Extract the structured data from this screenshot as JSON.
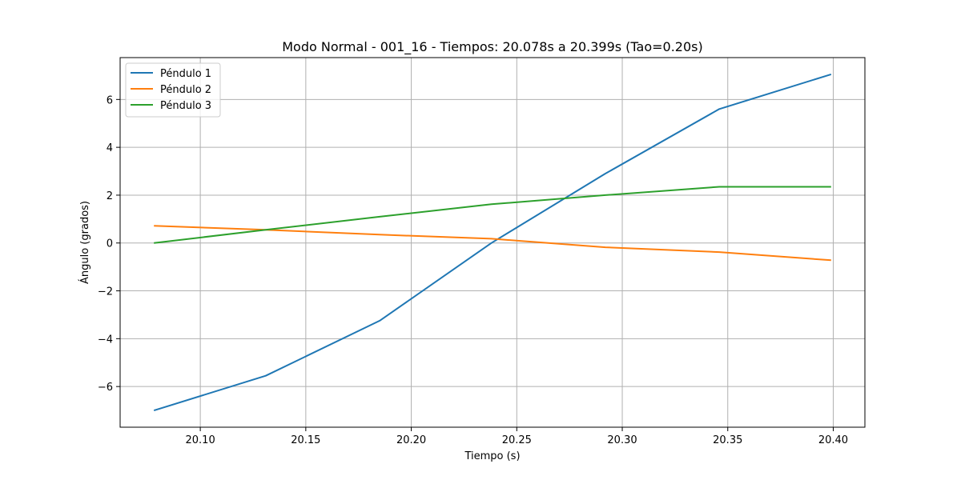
{
  "chart_data": {
    "type": "line",
    "title": "Modo Normal - 001_16 - Tiempos: 20.078s a 20.399s (Tao=0.20s)",
    "xlabel": "Tiempo (s)",
    "ylabel": "Ángulo (grados)",
    "xlim": [
      20.062,
      20.415
    ],
    "ylim": [
      -7.7,
      7.75
    ],
    "x_ticks": [
      20.1,
      20.15,
      20.2,
      20.25,
      20.3,
      20.35,
      20.4
    ],
    "x_tick_labels": [
      "20.10",
      "20.15",
      "20.20",
      "20.25",
      "20.30",
      "20.35",
      "20.40"
    ],
    "y_ticks": [
      -6,
      -4,
      -2,
      0,
      2,
      4,
      6
    ],
    "y_tick_labels": [
      "−6",
      "−4",
      "−2",
      "0",
      "2",
      "4",
      "6"
    ],
    "grid": true,
    "legend_position": "top-left",
    "series": [
      {
        "name": "Péndulo 1",
        "color": "#1f77b4",
        "x": [
          20.078,
          20.131,
          20.185,
          20.238,
          20.292,
          20.346,
          20.399
        ],
        "y": [
          -7.0,
          -5.55,
          -3.25,
          0.0,
          2.9,
          5.6,
          7.05
        ]
      },
      {
        "name": "Péndulo 2",
        "color": "#ff7f0e",
        "x": [
          20.078,
          20.131,
          20.185,
          20.238,
          20.292,
          20.346,
          20.399
        ],
        "y": [
          0.72,
          0.55,
          0.35,
          0.18,
          -0.18,
          -0.38,
          -0.72
        ]
      },
      {
        "name": "Péndulo 3",
        "color": "#2ca02c",
        "x": [
          20.078,
          20.131,
          20.185,
          20.238,
          20.292,
          20.346,
          20.399
        ],
        "y": [
          0.0,
          0.55,
          1.1,
          1.62,
          2.0,
          2.35,
          2.35
        ]
      }
    ]
  }
}
